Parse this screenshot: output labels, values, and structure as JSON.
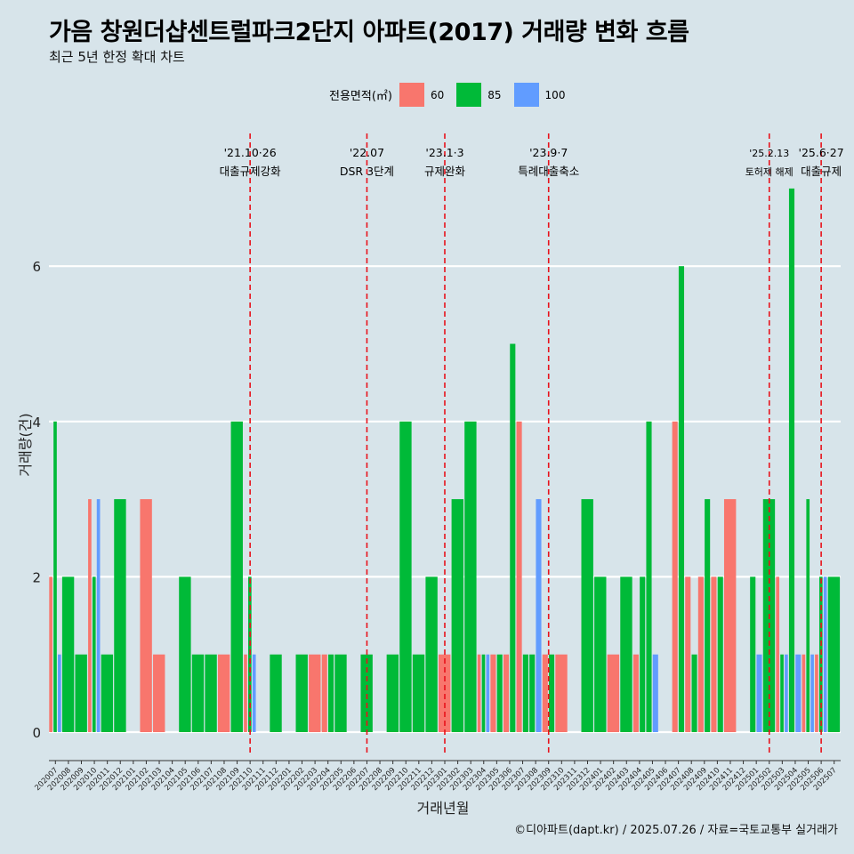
{
  "title": "가음 창원더샵센트럴파크2단지 아파트(2017) 거래량 변화 흐름",
  "subtitle": "최근 5년 한정 확대 차트",
  "caption": "©디아파트(dapt.kr) / 2025.07.26 / 자료=국토교통부 실거래가",
  "legend": {
    "title": "전용면적(㎡)",
    "items": [
      {
        "label": "60",
        "color": "#f8766d"
      },
      {
        "label": "85",
        "color": "#00ba38"
      },
      {
        "label": "100",
        "color": "#619cff"
      }
    ]
  },
  "chart_data": {
    "type": "bar",
    "xlabel": "거래년월",
    "ylabel": "거래량(건)",
    "ylim": [
      0,
      7
    ],
    "yticks": [
      0,
      2,
      4,
      6
    ],
    "grid": true,
    "legend_position": "top",
    "categories": [
      "202007",
      "202008",
      "202009",
      "202010",
      "202011",
      "202012",
      "202101",
      "202102",
      "202103",
      "202104",
      "202105",
      "202106",
      "202107",
      "202108",
      "202109",
      "202110",
      "202111",
      "202112",
      "202201",
      "202202",
      "202203",
      "202204",
      "202205",
      "202206",
      "202207",
      "202208",
      "202209",
      "202210",
      "202211",
      "202212",
      "202301",
      "202302",
      "202303",
      "202304",
      "202305",
      "202306",
      "202307",
      "202308",
      "202309",
      "202310",
      "202311",
      "202312",
      "202401",
      "202402",
      "202403",
      "202404",
      "202405",
      "202406",
      "202407",
      "202408",
      "202409",
      "202410",
      "202411",
      "202412",
      "202501",
      "202502",
      "202503",
      "202504",
      "202505",
      "202506",
      "202507"
    ],
    "series": [
      {
        "name": "60",
        "color": "#f8766d",
        "values": [
          2,
          0,
          0,
          3,
          0,
          0,
          0,
          3,
          1,
          0,
          0,
          0,
          0,
          1,
          0,
          1,
          0,
          0,
          0,
          0,
          1,
          1,
          0,
          0,
          0,
          0,
          0,
          0,
          0,
          0,
          1,
          0,
          0,
          1,
          1,
          1,
          4,
          0,
          1,
          1,
          0,
          0,
          0,
          1,
          0,
          1,
          0,
          0,
          4,
          2,
          2,
          2,
          3,
          0,
          0,
          0,
          2,
          0,
          1,
          1,
          0
        ]
      },
      {
        "name": "85",
        "color": "#00ba38",
        "values": [
          4,
          2,
          1,
          2,
          1,
          3,
          0,
          0,
          0,
          0,
          2,
          1,
          1,
          0,
          4,
          2,
          0,
          1,
          0,
          1,
          0,
          1,
          1,
          0,
          1,
          0,
          1,
          4,
          1,
          2,
          0,
          3,
          4,
          1,
          1,
          5,
          1,
          1,
          1,
          0,
          0,
          3,
          2,
          0,
          2,
          2,
          4,
          0,
          6,
          1,
          3,
          2,
          0,
          0,
          2,
          3,
          1,
          7,
          3,
          2,
          2
        ]
      },
      {
        "name": "100",
        "color": "#619cff",
        "values": [
          1,
          0,
          0,
          3,
          0,
          0,
          0,
          0,
          0,
          0,
          0,
          0,
          0,
          0,
          0,
          1,
          0,
          0,
          0,
          0,
          0,
          0,
          0,
          0,
          0,
          0,
          0,
          0,
          0,
          0,
          0,
          0,
          0,
          1,
          0,
          0,
          0,
          3,
          0,
          0,
          0,
          0,
          0,
          0,
          0,
          0,
          1,
          0,
          0,
          0,
          0,
          0,
          0,
          0,
          1,
          0,
          1,
          1,
          1,
          2,
          0
        ]
      }
    ],
    "events": [
      {
        "at": "202110",
        "date": "'21.10·26",
        "label": "대출규제강화"
      },
      {
        "at": "202207",
        "date": "'22.07",
        "label": "DSR 3단계"
      },
      {
        "at": "202301",
        "date": "'23.1·3",
        "label": "규제완화"
      },
      {
        "at": "202309",
        "date": "'23.9·7",
        "label": "특례대출축소"
      },
      {
        "at": "202502",
        "date": "'25.2.13",
        "label": "토허제 해제"
      },
      {
        "at": "202506",
        "date": "'25.6·27",
        "label": "대출규제"
      }
    ]
  }
}
